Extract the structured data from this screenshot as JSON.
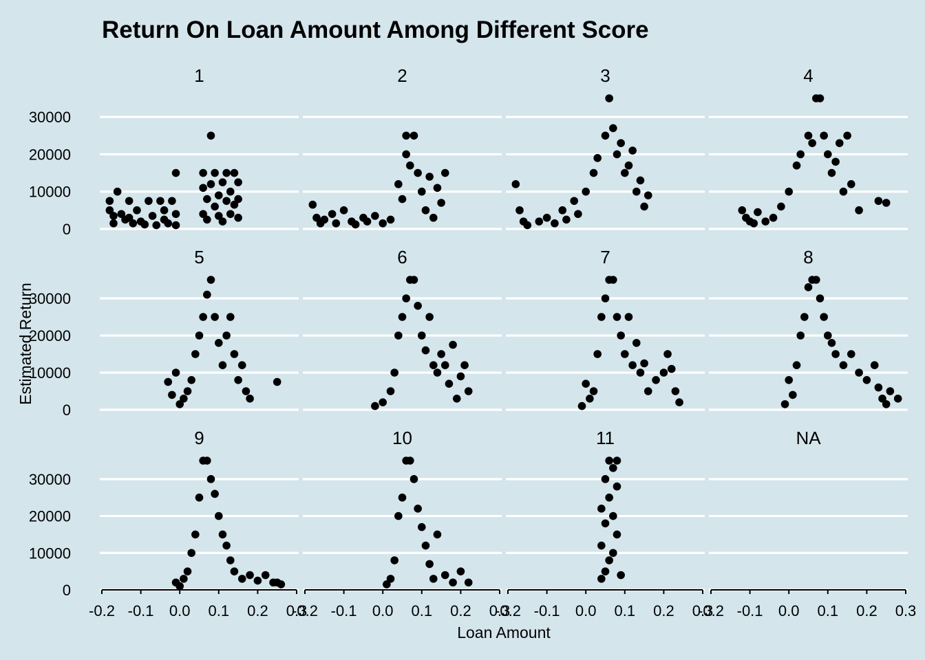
{
  "chart_data": {
    "type": "scatter",
    "title": "Return On Loan Amount Among Different Score",
    "xlabel": "Loan Amount",
    "ylabel": "Estimated Return",
    "xlim": [
      -0.2,
      0.3
    ],
    "ylim": [
      0,
      35000
    ],
    "x_ticks": [
      "-0.2",
      "-0.1",
      "0.0",
      "0.1",
      "0.2",
      "0.3"
    ],
    "y_ticks": [
      "0",
      "10000",
      "20000",
      "30000"
    ],
    "grid": "horizontal major lines, white",
    "background": "#d4e5ec",
    "point_color": "#000000",
    "facets": [
      {
        "label": "1",
        "points": [
          [
            -0.18,
            7500
          ],
          [
            -0.18,
            5000
          ],
          [
            -0.17,
            3500
          ],
          [
            -0.17,
            1500
          ],
          [
            -0.16,
            10000
          ],
          [
            -0.15,
            4000
          ],
          [
            -0.14,
            2500
          ],
          [
            -0.13,
            7500
          ],
          [
            -0.13,
            3000
          ],
          [
            -0.12,
            1500
          ],
          [
            -0.11,
            5000
          ],
          [
            -0.1,
            2000
          ],
          [
            -0.09,
            1200
          ],
          [
            -0.08,
            7500
          ],
          [
            -0.07,
            3500
          ],
          [
            -0.06,
            1000
          ],
          [
            -0.05,
            7500
          ],
          [
            -0.04,
            5000
          ],
          [
            -0.04,
            2500
          ],
          [
            -0.03,
            1500
          ],
          [
            -0.02,
            7500
          ],
          [
            -0.01,
            15000
          ],
          [
            -0.01,
            4000
          ],
          [
            -0.01,
            1000
          ],
          [
            0.06,
            15000
          ],
          [
            0.06,
            11000
          ],
          [
            0.06,
            4000
          ],
          [
            0.07,
            8000
          ],
          [
            0.07,
            2500
          ],
          [
            0.08,
            25000
          ],
          [
            0.08,
            12000
          ],
          [
            0.09,
            6000
          ],
          [
            0.09,
            15000
          ],
          [
            0.1,
            3500
          ],
          [
            0.1,
            9000
          ],
          [
            0.11,
            12500
          ],
          [
            0.11,
            2000
          ],
          [
            0.12,
            7500
          ],
          [
            0.12,
            15000
          ],
          [
            0.13,
            4000
          ],
          [
            0.13,
            10000
          ],
          [
            0.14,
            6500
          ],
          [
            0.14,
            15000
          ],
          [
            0.15,
            3000
          ],
          [
            0.15,
            8000
          ],
          [
            0.15,
            12500
          ]
        ]
      },
      {
        "label": "2",
        "points": [
          [
            -0.18,
            6500
          ],
          [
            -0.17,
            3000
          ],
          [
            -0.16,
            1500
          ],
          [
            -0.15,
            2500
          ],
          [
            -0.13,
            4000
          ],
          [
            -0.12,
            1500
          ],
          [
            -0.1,
            5000
          ],
          [
            -0.08,
            2000
          ],
          [
            -0.07,
            1200
          ],
          [
            -0.05,
            3000
          ],
          [
            -0.04,
            2000
          ],
          [
            -0.02,
            3500
          ],
          [
            0.0,
            1500
          ],
          [
            0.02,
            2500
          ],
          [
            0.04,
            12000
          ],
          [
            0.05,
            8000
          ],
          [
            0.06,
            25000
          ],
          [
            0.06,
            20000
          ],
          [
            0.07,
            17000
          ],
          [
            0.08,
            25000
          ],
          [
            0.09,
            15000
          ],
          [
            0.1,
            10000
          ],
          [
            0.11,
            5000
          ],
          [
            0.12,
            14000
          ],
          [
            0.13,
            3000
          ],
          [
            0.14,
            11000
          ],
          [
            0.15,
            7000
          ],
          [
            0.16,
            15000
          ]
        ]
      },
      {
        "label": "3",
        "points": [
          [
            -0.18,
            12000
          ],
          [
            -0.17,
            5000
          ],
          [
            -0.16,
            2000
          ],
          [
            -0.15,
            1000
          ],
          [
            -0.12,
            2000
          ],
          [
            -0.1,
            3000
          ],
          [
            -0.08,
            1500
          ],
          [
            -0.06,
            5000
          ],
          [
            -0.05,
            2500
          ],
          [
            -0.03,
            7500
          ],
          [
            -0.02,
            4000
          ],
          [
            0.0,
            10000
          ],
          [
            0.02,
            15000
          ],
          [
            0.03,
            19000
          ],
          [
            0.05,
            25000
          ],
          [
            0.06,
            35000
          ],
          [
            0.07,
            27000
          ],
          [
            0.08,
            20000
          ],
          [
            0.09,
            23000
          ],
          [
            0.1,
            15000
          ],
          [
            0.11,
            17000
          ],
          [
            0.12,
            21000
          ],
          [
            0.13,
            10000
          ],
          [
            0.14,
            13000
          ],
          [
            0.15,
            6000
          ],
          [
            0.16,
            9000
          ]
        ]
      },
      {
        "label": "4",
        "points": [
          [
            -0.12,
            5000
          ],
          [
            -0.11,
            3000
          ],
          [
            -0.1,
            2000
          ],
          [
            -0.09,
            1500
          ],
          [
            -0.08,
            4500
          ],
          [
            -0.06,
            2000
          ],
          [
            -0.04,
            3000
          ],
          [
            -0.02,
            6000
          ],
          [
            0.0,
            10000
          ],
          [
            0.02,
            17000
          ],
          [
            0.03,
            20000
          ],
          [
            0.05,
            25000
          ],
          [
            0.06,
            23000
          ],
          [
            0.07,
            35000
          ],
          [
            0.08,
            35000
          ],
          [
            0.09,
            25000
          ],
          [
            0.1,
            20000
          ],
          [
            0.11,
            15000
          ],
          [
            0.12,
            18000
          ],
          [
            0.13,
            23000
          ],
          [
            0.14,
            10000
          ],
          [
            0.15,
            25000
          ],
          [
            0.16,
            12000
          ],
          [
            0.18,
            5000
          ],
          [
            0.23,
            7500
          ],
          [
            0.25,
            7000
          ]
        ]
      },
      {
        "label": "5",
        "points": [
          [
            -0.03,
            7500
          ],
          [
            -0.02,
            4000
          ],
          [
            -0.01,
            10000
          ],
          [
            0.0,
            1500
          ],
          [
            0.01,
            3000
          ],
          [
            0.02,
            5000
          ],
          [
            0.03,
            8000
          ],
          [
            0.04,
            15000
          ],
          [
            0.05,
            20000
          ],
          [
            0.06,
            25000
          ],
          [
            0.07,
            31000
          ],
          [
            0.08,
            35000
          ],
          [
            0.09,
            25000
          ],
          [
            0.1,
            18000
          ],
          [
            0.11,
            12000
          ],
          [
            0.12,
            20000
          ],
          [
            0.13,
            25000
          ],
          [
            0.14,
            15000
          ],
          [
            0.15,
            8000
          ],
          [
            0.16,
            12000
          ],
          [
            0.17,
            5000
          ],
          [
            0.18,
            3000
          ],
          [
            0.25,
            7500
          ]
        ]
      },
      {
        "label": "6",
        "points": [
          [
            -0.02,
            1000
          ],
          [
            0.0,
            2000
          ],
          [
            0.02,
            5000
          ],
          [
            0.03,
            10000
          ],
          [
            0.04,
            20000
          ],
          [
            0.05,
            25000
          ],
          [
            0.06,
            30000
          ],
          [
            0.07,
            35000
          ],
          [
            0.08,
            35000
          ],
          [
            0.09,
            28000
          ],
          [
            0.1,
            20000
          ],
          [
            0.11,
            16000
          ],
          [
            0.12,
            25000
          ],
          [
            0.13,
            12000
          ],
          [
            0.14,
            10000
          ],
          [
            0.15,
            15000
          ],
          [
            0.16,
            12000
          ],
          [
            0.17,
            7000
          ],
          [
            0.18,
            17500
          ],
          [
            0.19,
            3000
          ],
          [
            0.2,
            9000
          ],
          [
            0.21,
            12000
          ],
          [
            0.22,
            5000
          ]
        ]
      },
      {
        "label": "7",
        "points": [
          [
            -0.01,
            1000
          ],
          [
            0.0,
            7000
          ],
          [
            0.01,
            3000
          ],
          [
            0.02,
            5000
          ],
          [
            0.03,
            15000
          ],
          [
            0.04,
            25000
          ],
          [
            0.05,
            30000
          ],
          [
            0.06,
            35000
          ],
          [
            0.07,
            35000
          ],
          [
            0.08,
            25000
          ],
          [
            0.09,
            20000
          ],
          [
            0.1,
            15000
          ],
          [
            0.11,
            25000
          ],
          [
            0.12,
            12000
          ],
          [
            0.13,
            18000
          ],
          [
            0.14,
            10000
          ],
          [
            0.15,
            12500
          ],
          [
            0.16,
            5000
          ],
          [
            0.18,
            8000
          ],
          [
            0.2,
            10000
          ],
          [
            0.21,
            15000
          ],
          [
            0.22,
            11000
          ],
          [
            0.23,
            5000
          ],
          [
            0.24,
            2000
          ]
        ]
      },
      {
        "label": "8",
        "points": [
          [
            -0.01,
            1500
          ],
          [
            0.0,
            8000
          ],
          [
            0.01,
            4000
          ],
          [
            0.02,
            12000
          ],
          [
            0.03,
            20000
          ],
          [
            0.04,
            25000
          ],
          [
            0.05,
            33000
          ],
          [
            0.06,
            35000
          ],
          [
            0.07,
            35000
          ],
          [
            0.08,
            30000
          ],
          [
            0.09,
            25000
          ],
          [
            0.1,
            20000
          ],
          [
            0.11,
            18000
          ],
          [
            0.12,
            15000
          ],
          [
            0.14,
            12000
          ],
          [
            0.16,
            15000
          ],
          [
            0.18,
            10000
          ],
          [
            0.2,
            8000
          ],
          [
            0.22,
            12000
          ],
          [
            0.23,
            6000
          ],
          [
            0.24,
            3000
          ],
          [
            0.25,
            1500
          ],
          [
            0.26,
            5000
          ],
          [
            0.28,
            3000
          ]
        ]
      },
      {
        "label": "9",
        "points": [
          [
            -0.01,
            2000
          ],
          [
            0.0,
            1000
          ],
          [
            0.01,
            3000
          ],
          [
            0.02,
            5000
          ],
          [
            0.03,
            10000
          ],
          [
            0.04,
            15000
          ],
          [
            0.05,
            25000
          ],
          [
            0.06,
            35000
          ],
          [
            0.07,
            35000
          ],
          [
            0.08,
            30000
          ],
          [
            0.09,
            26000
          ],
          [
            0.1,
            20000
          ],
          [
            0.11,
            15000
          ],
          [
            0.12,
            12000
          ],
          [
            0.13,
            8000
          ],
          [
            0.14,
            5000
          ],
          [
            0.16,
            3000
          ],
          [
            0.18,
            4000
          ],
          [
            0.2,
            2500
          ],
          [
            0.22,
            4000
          ],
          [
            0.24,
            2000
          ],
          [
            0.25,
            2000
          ],
          [
            0.26,
            1500
          ]
        ]
      },
      {
        "label": "10",
        "points": [
          [
            0.01,
            1500
          ],
          [
            0.02,
            3000
          ],
          [
            0.03,
            8000
          ],
          [
            0.04,
            20000
          ],
          [
            0.05,
            25000
          ],
          [
            0.06,
            35000
          ],
          [
            0.07,
            35000
          ],
          [
            0.08,
            30000
          ],
          [
            0.09,
            22000
          ],
          [
            0.1,
            17000
          ],
          [
            0.11,
            12000
          ],
          [
            0.12,
            7000
          ],
          [
            0.13,
            3000
          ],
          [
            0.14,
            15000
          ],
          [
            0.16,
            4000
          ],
          [
            0.18,
            2000
          ],
          [
            0.2,
            5000
          ],
          [
            0.22,
            2000
          ]
        ]
      },
      {
        "label": "11",
        "points": [
          [
            0.04,
            3000
          ],
          [
            0.04,
            12000
          ],
          [
            0.04,
            22000
          ],
          [
            0.05,
            5000
          ],
          [
            0.05,
            18000
          ],
          [
            0.05,
            30000
          ],
          [
            0.06,
            8000
          ],
          [
            0.06,
            25000
          ],
          [
            0.06,
            35000
          ],
          [
            0.07,
            10000
          ],
          [
            0.07,
            20000
          ],
          [
            0.07,
            33000
          ],
          [
            0.08,
            15000
          ],
          [
            0.08,
            28000
          ],
          [
            0.08,
            35000
          ],
          [
            0.09,
            4000
          ]
        ]
      },
      {
        "label": "NA",
        "points": []
      }
    ]
  }
}
